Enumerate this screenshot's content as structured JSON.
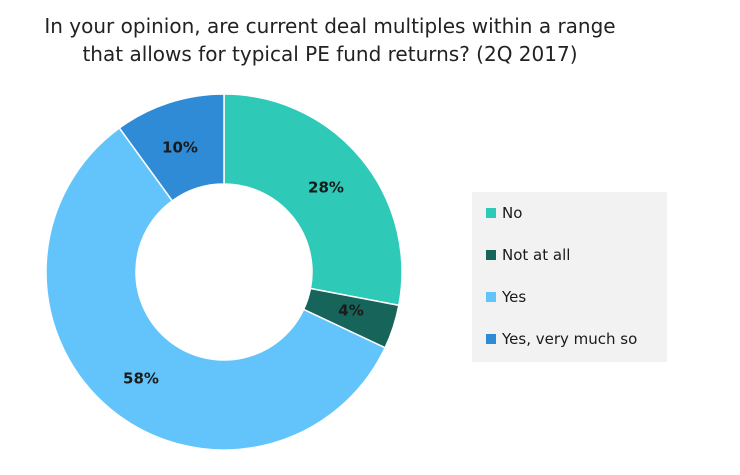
{
  "chart_data": {
    "type": "pie",
    "subtype": "donut",
    "title_lines": [
      "In your opinion, are current deal multiples within a range",
      "that allows for typical PE fund returns? (2Q 2017)"
    ],
    "categories": [
      "No",
      "Not at all",
      "Yes",
      "Yes, very much so"
    ],
    "values": [
      28,
      4,
      58,
      10
    ],
    "value_labels": [
      "28%",
      "4%",
      "58%",
      "10%"
    ],
    "colors": [
      "#2ec9b7",
      "#17645a",
      "#63c4fb",
      "#2f8bd6"
    ],
    "legend_position": "right"
  }
}
